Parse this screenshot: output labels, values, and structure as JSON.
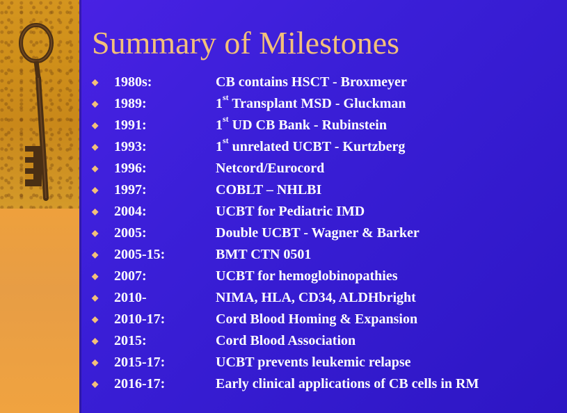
{
  "slide": {
    "title": "Summary of Milestones",
    "image_label": "antique-key",
    "bullet_glyph": "◆",
    "items": [
      {
        "year": "1980s:",
        "prefix": "",
        "sup": "",
        "text": "CB contains HSCT - Broxmeyer"
      },
      {
        "year": "1989:",
        "prefix": "1",
        "sup": "st",
        "text": " Transplant MSD - Gluckman"
      },
      {
        "year": "1991:",
        "prefix": "1",
        "sup": "st",
        "text": " UD CB Bank - Rubinstein"
      },
      {
        "year": "1993:",
        "prefix": "1",
        "sup": "st",
        "text": " unrelated UCBT - Kurtzberg"
      },
      {
        "year": "1996:",
        "prefix": "",
        "sup": "",
        "text": "Netcord/Eurocord"
      },
      {
        "year": "1997:",
        "prefix": "",
        "sup": "",
        "text": "COBLT – NHLBI"
      },
      {
        "year": "2004:",
        "prefix": "",
        "sup": "",
        "text": "UCBT for Pediatric IMD"
      },
      {
        "year": "2005:",
        "prefix": "",
        "sup": "",
        "text": "Double UCBT - Wagner & Barker"
      },
      {
        "year": "2005-15:",
        "prefix": "",
        "sup": "",
        "text": "BMT CTN 0501"
      },
      {
        "year": "2007:",
        "prefix": "",
        "sup": "",
        "text": "UCBT for hemoglobinopathies"
      },
      {
        "year": "2010-",
        "prefix": "",
        "sup": "",
        "text": "NIMA, HLA, CD34, ALDHbright"
      },
      {
        "year": "2010-17:",
        "prefix": "",
        "sup": "",
        "text": "Cord Blood Homing & Expansion"
      },
      {
        "year": "2015:",
        "prefix": "",
        "sup": "",
        "text": "Cord Blood Association"
      },
      {
        "year": "2015-17:",
        "prefix": "",
        "sup": "",
        "text": "UCBT prevents leukemic relapse"
      },
      {
        "year": "2016-17:",
        "prefix": "",
        "sup": "",
        "text": "Early clinical applications of CB cells in RM"
      }
    ]
  },
  "colors": {
    "background": "#3b1fd8",
    "title": "#f3c07a",
    "text": "#ffffff",
    "strip": "#f2a238"
  }
}
